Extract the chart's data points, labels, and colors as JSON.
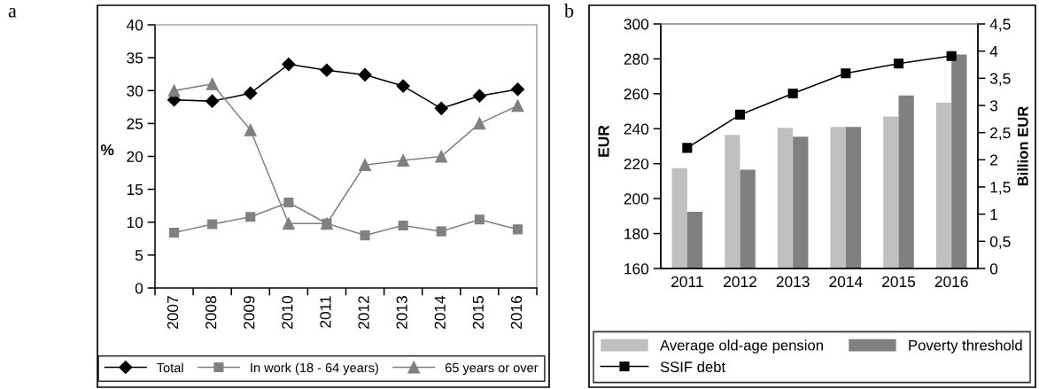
{
  "chart_data": [
    {
      "type": "line",
      "annotations": [
        "a"
      ],
      "categories": [
        "2007",
        "2008",
        "2009",
        "2010",
        "2011",
        "2012",
        "2013",
        "2014",
        "2015",
        "2016"
      ],
      "ylabel": "%",
      "ylim": [
        0,
        40
      ],
      "yticks": [
        0,
        5,
        10,
        15,
        20,
        25,
        30,
        35,
        40
      ],
      "legend": "bottom",
      "series": [
        {
          "name": "Total",
          "color": "#000000",
          "marker": "diamond",
          "values": [
            28.6,
            28.4,
            29.6,
            34.0,
            33.1,
            32.4,
            30.7,
            27.3,
            29.2,
            30.2
          ]
        },
        {
          "name": "In work (18 - 64 years)",
          "color": "#808080",
          "marker": "square",
          "values": [
            8.4,
            9.7,
            10.8,
            13.0,
            9.8,
            8.0,
            9.5,
            8.6,
            10.4,
            8.9
          ]
        },
        {
          "name": "65 years or over",
          "color": "#808080",
          "marker": "triangle",
          "values": [
            30.0,
            31.0,
            24.0,
            9.8,
            9.8,
            18.7,
            19.4,
            20.0,
            25.0,
            27.7
          ]
        }
      ]
    },
    {
      "type": "bar",
      "annotations": [
        "b"
      ],
      "categories": [
        "2011",
        "2012",
        "2013",
        "2014",
        "2015",
        "2016"
      ],
      "ylabel": "EUR",
      "y2label": "Billion EUR",
      "ylim": [
        160,
        300
      ],
      "yticks": [
        160,
        180,
        200,
        220,
        240,
        260,
        280,
        300
      ],
      "y2lim": [
        0,
        4.5
      ],
      "y2ticks": [
        0,
        {
          "value": 0.5,
          "label": "0,5"
        },
        1,
        {
          "value": 1.5,
          "label": "1,5"
        },
        2,
        {
          "value": 2.5,
          "label": "2,5"
        },
        3,
        {
          "value": 3.5,
          "label": "3,5"
        },
        4,
        {
          "value": 4.5,
          "label": "4,5"
        }
      ],
      "legend": "bottom",
      "series": [
        {
          "name": "Average old-age pension",
          "color": "#c0c0c0",
          "values": [
            217.5,
            236.5,
            240.5,
            241,
            247,
            255
          ]
        },
        {
          "name": "Poverty threshold",
          "color": "#808080",
          "values": [
            192.5,
            216.5,
            235.5,
            241,
            259,
            282.5
          ]
        },
        {
          "name": "SSIF debt",
          "type": "line",
          "axis": "y2",
          "color": "#000000",
          "marker": "square",
          "values": [
            2.22,
            2.83,
            3.22,
            3.59,
            3.77,
            3.91
          ]
        }
      ]
    }
  ]
}
